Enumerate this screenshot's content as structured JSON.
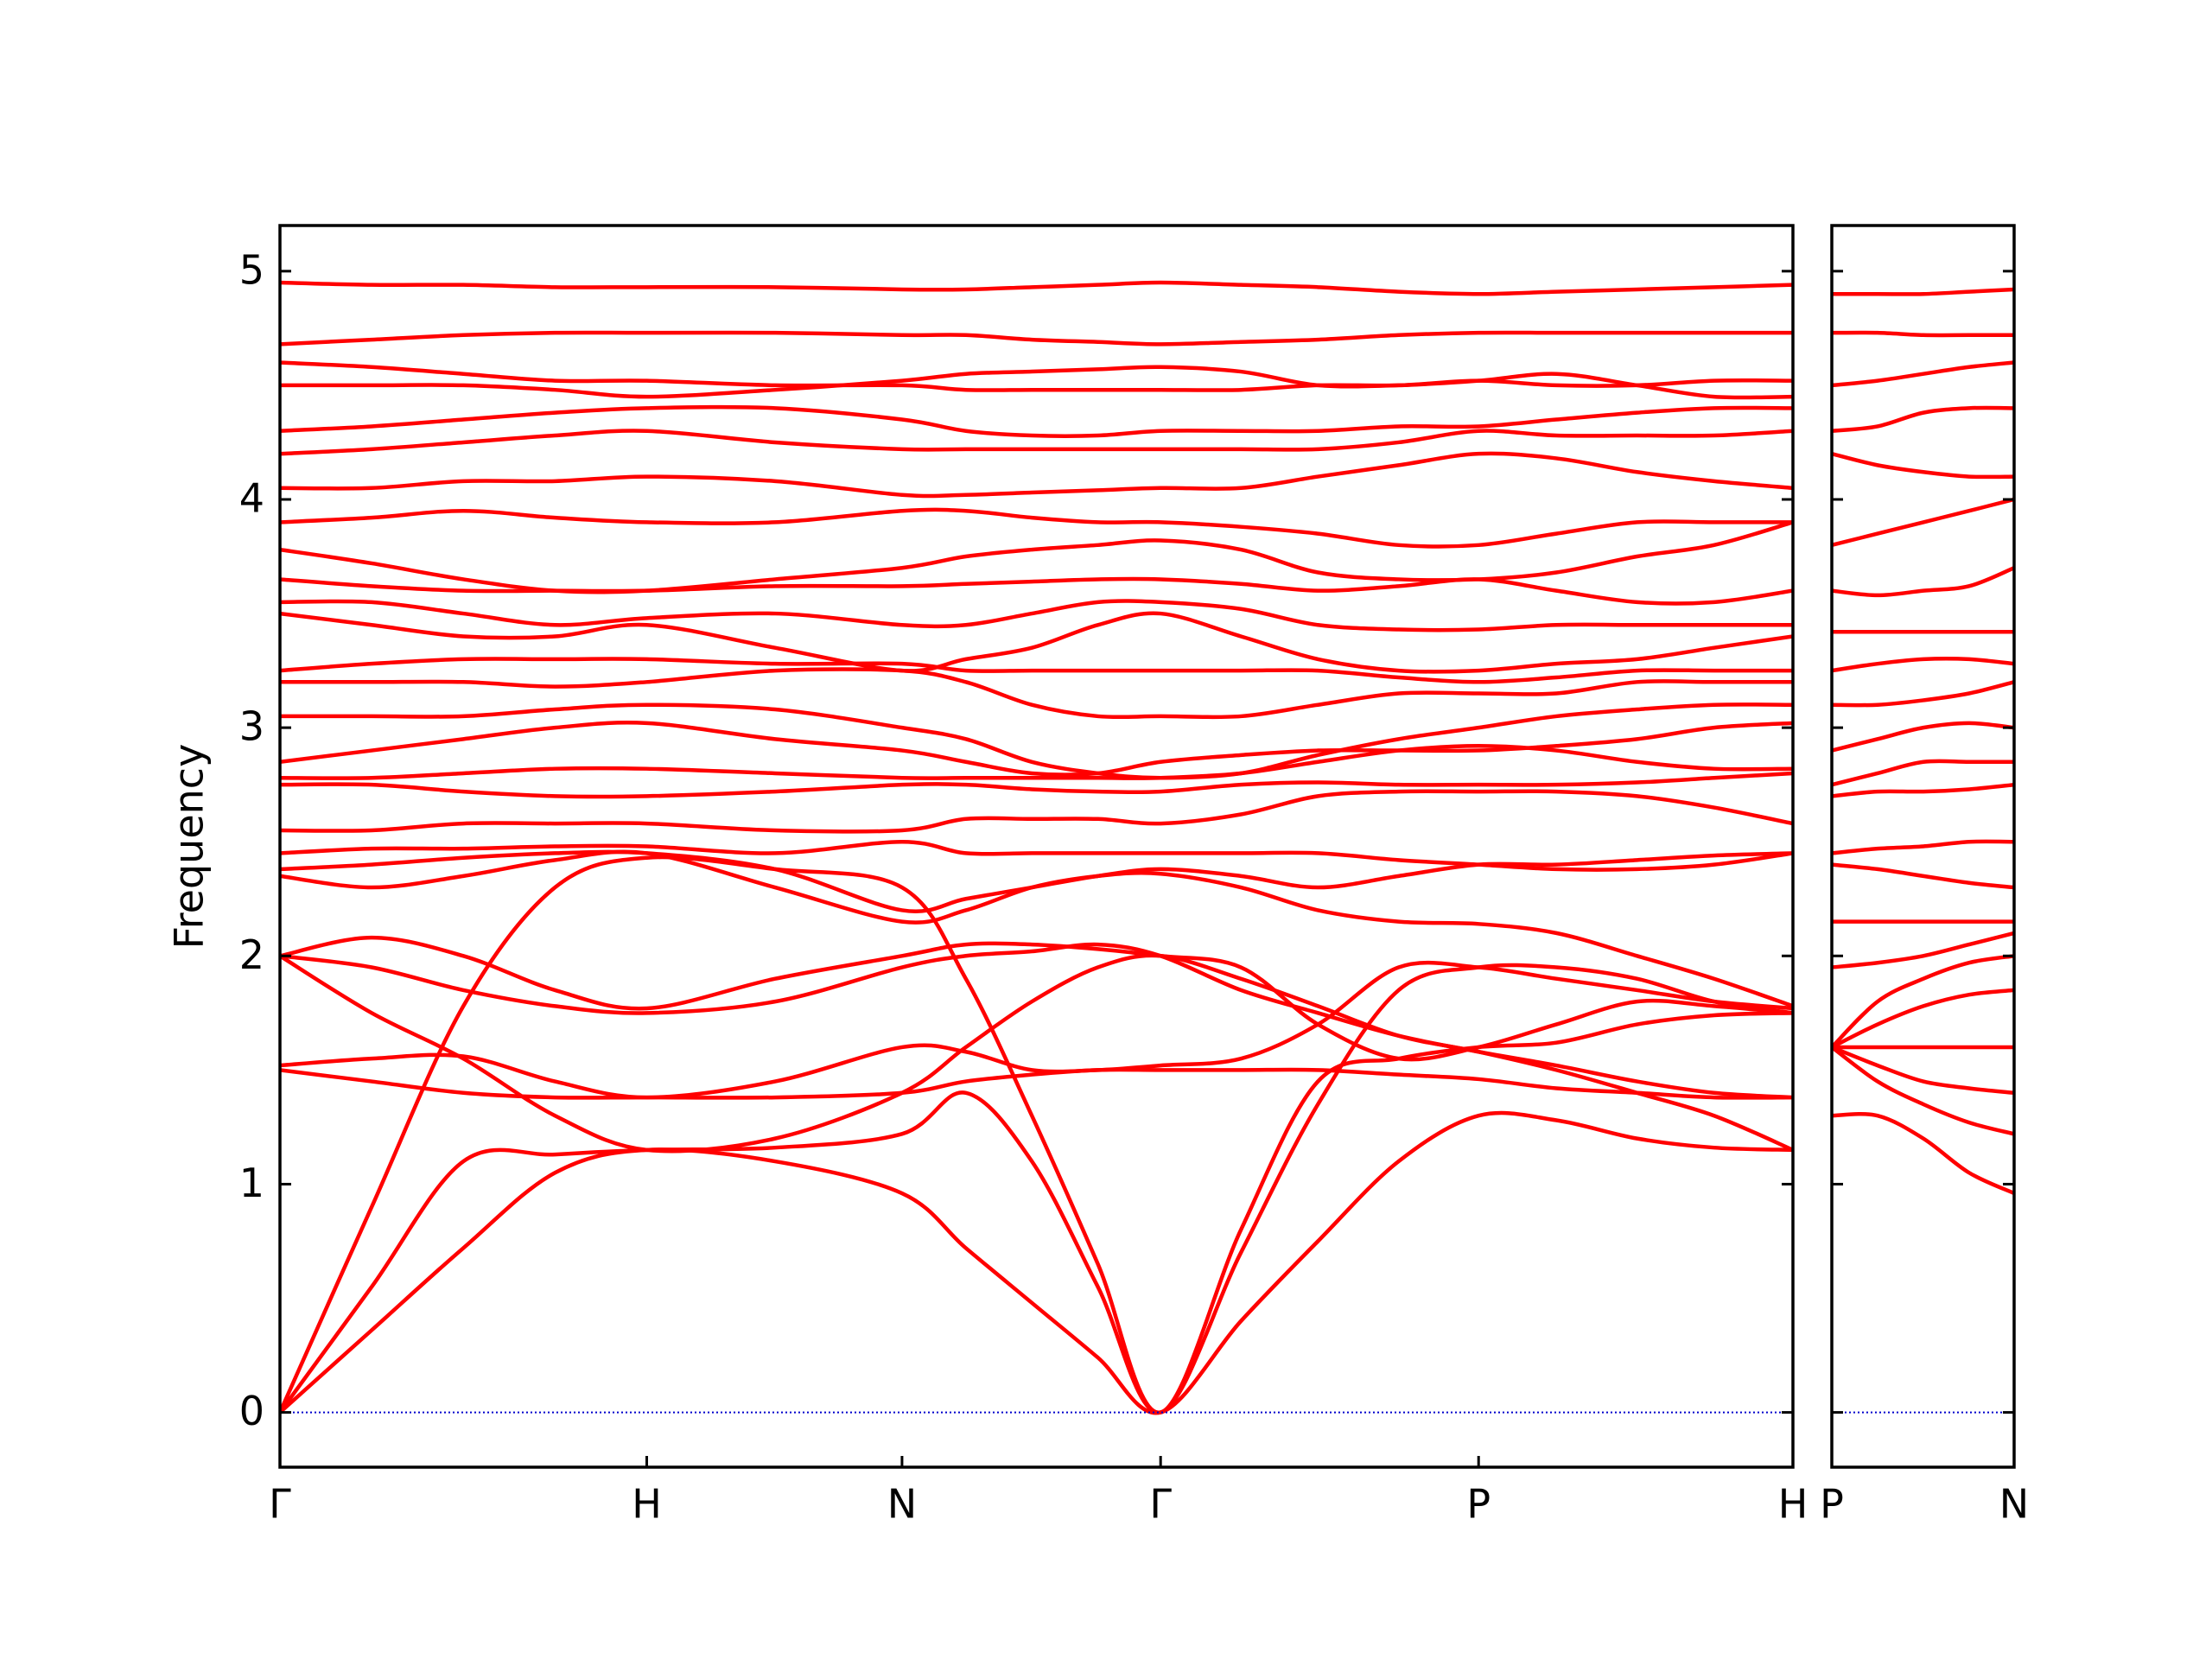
{
  "chart_data": [
    {
      "type": "line",
      "ylabel": "Frequency",
      "color": "#ff0000",
      "zero_line_color": "#0000cc",
      "xlim": [
        0,
        4.125
      ],
      "ylim": [
        -0.24,
        5.2
      ],
      "yticks": [
        0,
        1,
        2,
        3,
        4,
        5
      ],
      "xticks": [
        {
          "value": 0,
          "label": "Γ"
        },
        {
          "value": 1,
          "label": "H"
        },
        {
          "value": 1.696,
          "label": "N"
        },
        {
          "value": 2.401,
          "label": "Γ"
        },
        {
          "value": 3.268,
          "label": "P"
        },
        {
          "value": 4.125,
          "label": "H"
        }
      ],
      "x": [
        0,
        0.25,
        0.5,
        0.75,
        1,
        1.35,
        1.696,
        1.87,
        2.05,
        2.23,
        2.401,
        2.62,
        2.83,
        3.05,
        3.268,
        3.48,
        3.7,
        3.91,
        4.125
      ],
      "series": [
        {
          "values": [
            0,
            0.36,
            0.72,
            1.05,
            1.15,
            1.1,
            0.96,
            0.72,
            0.48,
            0.24,
            0,
            0.4,
            0.75,
            1.1,
            1.3,
            1.28,
            1.2,
            1.16,
            1.15
          ]
        },
        {
          "values": [
            0,
            0.9,
            1.78,
            2.3,
            2.43,
            2.38,
            2.3,
            1.9,
            1.3,
            0.65,
            0,
            0.8,
            1.45,
            1.55,
            1.6,
            1.62,
            1.7,
            1.74,
            1.75
          ]
        },
        {
          "values": [
            0,
            0.55,
            1.1,
            1.13,
            1.15,
            1.16,
            1.22,
            1.4,
            1.1,
            0.55,
            0,
            0.7,
            1.35,
            1.85,
            1.95,
            1.95,
            1.9,
            1.8,
            1.75
          ]
        },
        {
          "values": [
            1.5,
            1.45,
            1.4,
            1.38,
            1.38,
            1.38,
            1.4,
            1.45,
            1.48,
            1.5,
            1.5,
            1.5,
            1.5,
            1.48,
            1.46,
            1.42,
            1.4,
            1.38,
            1.38
          ]
        },
        {
          "values": [
            1.52,
            1.55,
            1.56,
            1.45,
            1.38,
            1.45,
            1.6,
            1.58,
            1.5,
            1.5,
            1.52,
            1.55,
            1.7,
            1.95,
            1.95,
            1.9,
            1.85,
            1.8,
            1.77
          ]
        },
        {
          "values": [
            2.0,
            1.75,
            1.55,
            1.3,
            1.15,
            1.2,
            1.4,
            1.6,
            1.8,
            1.95,
            2.0,
            1.9,
            1.78,
            1.65,
            1.58,
            1.5,
            1.4,
            1.3,
            1.15
          ]
        },
        {
          "values": [
            2.0,
            1.95,
            1.85,
            1.78,
            1.75,
            1.8,
            1.95,
            2.0,
            2.02,
            2.05,
            2.0,
            1.85,
            1.75,
            1.65,
            1.58,
            1.52,
            1.45,
            1.4,
            1.38
          ]
        },
        {
          "values": [
            2.0,
            2.08,
            2.0,
            1.85,
            1.77,
            1.9,
            2.0,
            2.05,
            2.05,
            2.03,
            2.0,
            1.95,
            1.7,
            1.55,
            1.6,
            1.7,
            1.8,
            1.78,
            1.75
          ]
        },
        {
          "values": [
            2.35,
            2.3,
            2.35,
            2.42,
            2.45,
            2.3,
            2.15,
            2.2,
            2.3,
            2.35,
            2.36,
            2.3,
            2.2,
            2.15,
            2.14,
            2.1,
            2.0,
            1.9,
            1.78
          ]
        },
        {
          "values": [
            2.38,
            2.4,
            2.43,
            2.45,
            2.45,
            2.38,
            2.2,
            2.25,
            2.3,
            2.35,
            2.38,
            2.35,
            2.3,
            2.35,
            2.4,
            2.4,
            2.42,
            2.44,
            2.45
          ]
        },
        {
          "values": [
            2.45,
            2.47,
            2.47,
            2.48,
            2.48,
            2.45,
            2.5,
            2.45,
            2.45,
            2.45,
            2.45,
            2.45,
            2.45,
            2.42,
            2.4,
            2.38,
            2.38,
            2.4,
            2.45
          ]
        },
        {
          "values": [
            2.55,
            2.55,
            2.58,
            2.58,
            2.58,
            2.55,
            2.55,
            2.6,
            2.6,
            2.6,
            2.58,
            2.62,
            2.7,
            2.72,
            2.72,
            2.72,
            2.7,
            2.65,
            2.58
          ]
        },
        {
          "values": [
            2.75,
            2.75,
            2.72,
            2.7,
            2.7,
            2.72,
            2.75,
            2.75,
            2.73,
            2.72,
            2.72,
            2.75,
            2.76,
            2.75,
            2.75,
            2.75,
            2.76,
            2.78,
            2.8
          ]
        },
        {
          "values": [
            2.78,
            2.78,
            2.8,
            2.82,
            2.82,
            2.8,
            2.78,
            2.78,
            2.78,
            2.78,
            2.78,
            2.8,
            2.85,
            2.9,
            2.92,
            2.9,
            2.85,
            2.82,
            2.82
          ]
        },
        {
          "values": [
            2.85,
            2.9,
            2.95,
            3.0,
            3.02,
            2.95,
            2.9,
            2.85,
            2.8,
            2.8,
            2.85,
            2.88,
            2.9,
            2.9,
            2.9,
            2.92,
            2.95,
            3.0,
            3.02
          ]
        },
        {
          "values": [
            3.05,
            3.05,
            3.05,
            3.08,
            3.1,
            3.08,
            3.0,
            2.95,
            2.85,
            2.8,
            2.78,
            2.8,
            2.88,
            2.95,
            3.0,
            3.05,
            3.08,
            3.1,
            3.1
          ]
        },
        {
          "values": [
            3.2,
            3.2,
            3.2,
            3.18,
            3.2,
            3.25,
            3.25,
            3.2,
            3.1,
            3.05,
            3.05,
            3.05,
            3.1,
            3.15,
            3.15,
            3.15,
            3.2,
            3.2,
            3.2
          ]
        },
        {
          "values": [
            3.25,
            3.28,
            3.3,
            3.3,
            3.3,
            3.28,
            3.28,
            3.25,
            3.25,
            3.25,
            3.25,
            3.25,
            3.25,
            3.22,
            3.2,
            3.22,
            3.25,
            3.25,
            3.25
          ]
        },
        {
          "values": [
            3.5,
            3.45,
            3.4,
            3.4,
            3.45,
            3.35,
            3.25,
            3.3,
            3.35,
            3.45,
            3.5,
            3.4,
            3.3,
            3.25,
            3.25,
            3.28,
            3.3,
            3.35,
            3.4
          ]
        },
        {
          "values": [
            3.55,
            3.55,
            3.5,
            3.45,
            3.48,
            3.5,
            3.45,
            3.45,
            3.5,
            3.55,
            3.55,
            3.52,
            3.45,
            3.43,
            3.43,
            3.45,
            3.45,
            3.45,
            3.45
          ]
        },
        {
          "values": [
            3.65,
            3.62,
            3.6,
            3.6,
            3.6,
            3.62,
            3.62,
            3.63,
            3.64,
            3.65,
            3.65,
            3.63,
            3.6,
            3.62,
            3.65,
            3.6,
            3.55,
            3.55,
            3.6
          ]
        },
        {
          "values": [
            3.78,
            3.72,
            3.65,
            3.6,
            3.6,
            3.65,
            3.7,
            3.75,
            3.78,
            3.8,
            3.82,
            3.78,
            3.68,
            3.65,
            3.65,
            3.68,
            3.75,
            3.8,
            3.9
          ]
        },
        {
          "values": [
            3.9,
            3.92,
            3.95,
            3.92,
            3.9,
            3.9,
            3.95,
            3.95,
            3.92,
            3.9,
            3.9,
            3.88,
            3.85,
            3.8,
            3.8,
            3.85,
            3.9,
            3.9,
            3.9
          ]
        },
        {
          "values": [
            4.05,
            4.05,
            4.08,
            4.08,
            4.1,
            4.08,
            4.02,
            4.02,
            4.03,
            4.04,
            4.05,
            4.05,
            4.1,
            4.15,
            4.2,
            4.18,
            4.12,
            4.08,
            4.05
          ]
        },
        {
          "values": [
            4.2,
            4.22,
            4.25,
            4.28,
            4.3,
            4.25,
            4.22,
            4.22,
            4.22,
            4.22,
            4.22,
            4.22,
            4.22,
            4.25,
            4.3,
            4.28,
            4.28,
            4.28,
            4.3
          ]
        },
        {
          "values": [
            4.3,
            4.32,
            4.35,
            4.38,
            4.4,
            4.4,
            4.35,
            4.3,
            4.28,
            4.28,
            4.3,
            4.3,
            4.3,
            4.32,
            4.32,
            4.35,
            4.38,
            4.4,
            4.4
          ]
        },
        {
          "values": [
            4.5,
            4.5,
            4.5,
            4.48,
            4.45,
            4.48,
            4.52,
            4.55,
            4.56,
            4.57,
            4.58,
            4.56,
            4.5,
            4.5,
            4.52,
            4.55,
            4.5,
            4.45,
            4.45
          ]
        },
        {
          "values": [
            4.6,
            4.58,
            4.55,
            4.52,
            4.52,
            4.5,
            4.5,
            4.48,
            4.48,
            4.48,
            4.48,
            4.48,
            4.5,
            4.5,
            4.52,
            4.5,
            4.5,
            4.52,
            4.52
          ]
        },
        {
          "values": [
            4.68,
            4.7,
            4.72,
            4.73,
            4.73,
            4.73,
            4.72,
            4.72,
            4.7,
            4.69,
            4.68,
            4.69,
            4.7,
            4.72,
            4.73,
            4.73,
            4.73,
            4.73,
            4.73
          ]
        },
        {
          "values": [
            4.95,
            4.94,
            4.94,
            4.93,
            4.93,
            4.93,
            4.92,
            4.92,
            4.93,
            4.94,
            4.95,
            4.94,
            4.93,
            4.91,
            4.9,
            4.91,
            4.92,
            4.93,
            4.94
          ]
        }
      ]
    },
    {
      "type": "line",
      "color": "#ff0000",
      "zero_line_color": "#0000cc",
      "xlim": [
        0,
        0.498
      ],
      "ylim": [
        -0.24,
        5.2
      ],
      "xticks": [
        {
          "value": 0,
          "label": "P"
        },
        {
          "value": 0.498,
          "label": "N"
        }
      ],
      "x": [
        0,
        0.125,
        0.25,
        0.375,
        0.498
      ],
      "series": [
        {
          "values": [
            1.3,
            1.3,
            1.2,
            1.05,
            0.96
          ]
        },
        {
          "values": [
            1.6,
            1.45,
            1.35,
            1.27,
            1.22
          ]
        },
        {
          "values": [
            1.6,
            1.52,
            1.45,
            1.42,
            1.4
          ]
        },
        {
          "values": [
            1.6,
            1.6,
            1.6,
            1.6,
            1.6
          ]
        },
        {
          "values": [
            1.6,
            1.7,
            1.78,
            1.83,
            1.85
          ]
        },
        {
          "values": [
            1.6,
            1.8,
            1.9,
            1.97,
            2.0
          ]
        },
        {
          "values": [
            1.95,
            1.97,
            2.0,
            2.05,
            2.1
          ]
        },
        {
          "values": [
            2.15,
            2.15,
            2.15,
            2.15,
            2.15
          ]
        },
        {
          "values": [
            2.4,
            2.38,
            2.35,
            2.32,
            2.3
          ]
        },
        {
          "values": [
            2.45,
            2.47,
            2.48,
            2.5,
            2.5
          ]
        },
        {
          "values": [
            2.7,
            2.72,
            2.72,
            2.73,
            2.75
          ]
        },
        {
          "values": [
            2.75,
            2.8,
            2.85,
            2.85,
            2.85
          ]
        },
        {
          "values": [
            2.9,
            2.95,
            3.0,
            3.02,
            3.0
          ]
        },
        {
          "values": [
            3.1,
            3.1,
            3.12,
            3.15,
            3.2
          ]
        },
        {
          "values": [
            3.25,
            3.28,
            3.3,
            3.3,
            3.28
          ]
        },
        {
          "values": [
            3.42,
            3.42,
            3.42,
            3.42,
            3.42
          ]
        },
        {
          "values": [
            3.6,
            3.58,
            3.6,
            3.62,
            3.7
          ]
        },
        {
          "values": [
            3.8,
            3.85,
            3.9,
            3.95,
            4.0
          ]
        },
        {
          "values": [
            4.2,
            4.15,
            4.12,
            4.1,
            4.1
          ]
        },
        {
          "values": [
            4.3,
            4.32,
            4.38,
            4.4,
            4.4
          ]
        },
        {
          "values": [
            4.5,
            4.52,
            4.55,
            4.58,
            4.6
          ]
        },
        {
          "values": [
            4.73,
            4.73,
            4.72,
            4.72,
            4.72
          ]
        },
        {
          "values": [
            4.9,
            4.9,
            4.9,
            4.91,
            4.92
          ]
        }
      ]
    }
  ]
}
